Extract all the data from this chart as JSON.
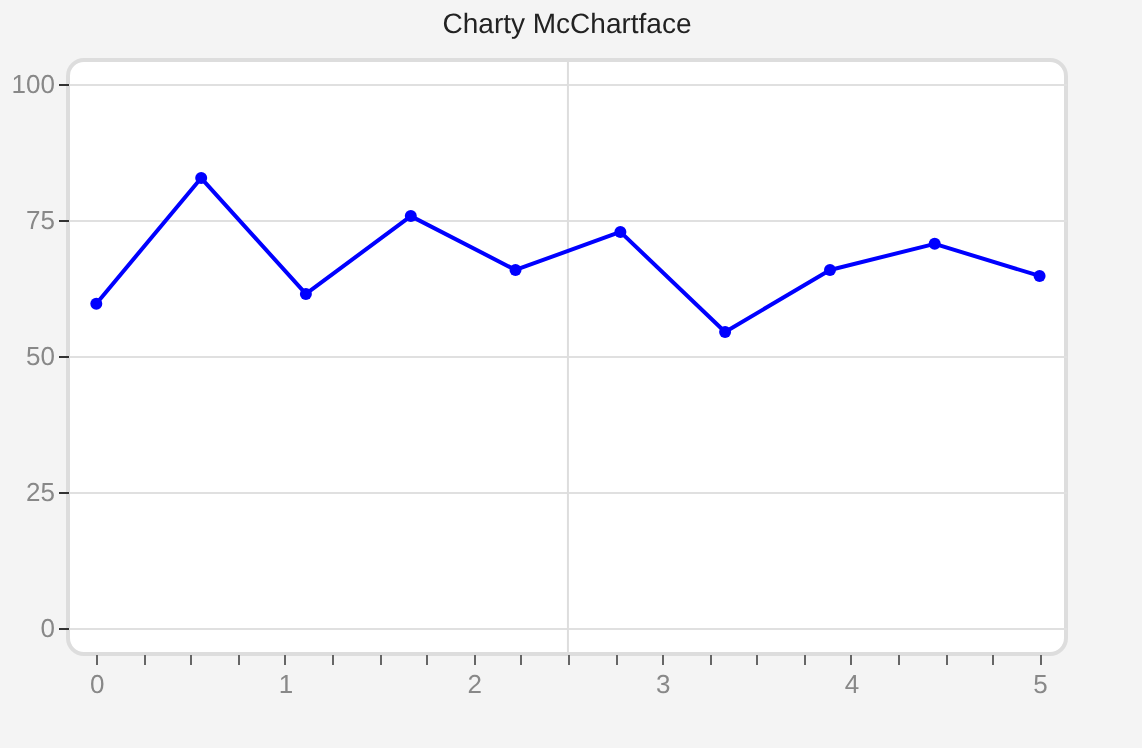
{
  "chart_data": {
    "type": "line",
    "title": "Charty McChartface",
    "x": [
      0,
      0.556,
      1.111,
      1.667,
      2.222,
      2.778,
      3.333,
      3.889,
      4.444,
      5
    ],
    "series": [
      {
        "color": "#0000ff",
        "values": [
          59.6,
          82.7,
          61.4,
          75.7,
          65.8,
          72.8,
          54.4,
          65.8,
          70.6,
          64.7
        ]
      }
    ],
    "xlim": [
      -0.15,
      5.14
    ],
    "ylim": [
      -4.8,
      104.4
    ],
    "xticks": [
      0,
      {
        "value": 0.25,
        "label": null
      },
      {
        "value": 0.5,
        "label": null
      },
      {
        "value": 0.75,
        "label": null
      },
      1,
      {
        "value": 1.25,
        "label": null
      },
      {
        "value": 1.5,
        "label": null
      },
      {
        "value": 1.75,
        "label": null
      },
      2,
      {
        "value": 2.25,
        "label": null
      },
      {
        "value": 2.5,
        "label": null
      },
      {
        "value": 2.75,
        "label": null
      },
      3,
      {
        "value": 3.25,
        "label": null
      },
      {
        "value": 3.5,
        "label": null
      },
      {
        "value": 3.75,
        "label": null
      },
      4,
      {
        "value": 4.25,
        "label": null
      },
      {
        "value": 4.5,
        "label": null
      },
      {
        "value": 4.75,
        "label": null
      },
      5
    ],
    "yticks": [
      0,
      25,
      50,
      75,
      100
    ],
    "grid": "y",
    "marker": "circle",
    "line_style": "solid",
    "ref_lines": [
      {
        "axis": "x",
        "value": 2.5,
        "color": "#dddddd"
      }
    ]
  }
}
